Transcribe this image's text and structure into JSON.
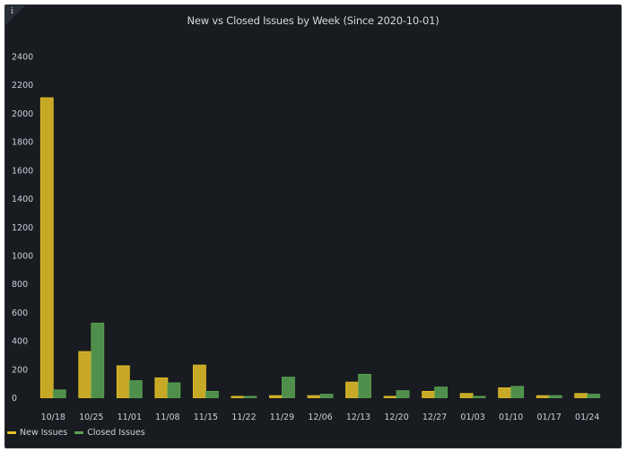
{
  "panel": {
    "title": "New vs Closed Issues by Week (Since 2020-10-01)",
    "info_icon": "info-icon"
  },
  "colors": {
    "new": "#e6c229",
    "closed": "#5aa354",
    "tick_text": "#c7d0d9"
  },
  "chart_data": {
    "type": "bar",
    "title": "New vs Closed Issues by Week (Since 2020-10-01)",
    "xlabel": "",
    "ylabel": "",
    "ylim": [
      0,
      2400
    ],
    "yticks": [
      0,
      200,
      400,
      600,
      800,
      1000,
      1200,
      1400,
      1600,
      1800,
      2000,
      2200,
      2400
    ],
    "grid": false,
    "legend": "bottom-left",
    "categories": [
      "10/18",
      "10/25",
      "11/01",
      "11/08",
      "11/15",
      "11/22",
      "11/29",
      "12/06",
      "12/13",
      "12/20",
      "12/27",
      "01/03",
      "01/10",
      "01/17",
      "01/24"
    ],
    "series": [
      {
        "name": "New Issues",
        "values": [
          2110,
          325,
          225,
          140,
          230,
          10,
          15,
          15,
          110,
          10,
          45,
          30,
          70,
          15,
          30
        ]
      },
      {
        "name": "Closed Issues",
        "values": [
          55,
          525,
          120,
          105,
          45,
          10,
          145,
          25,
          165,
          50,
          75,
          10,
          80,
          15,
          25
        ]
      }
    ]
  }
}
